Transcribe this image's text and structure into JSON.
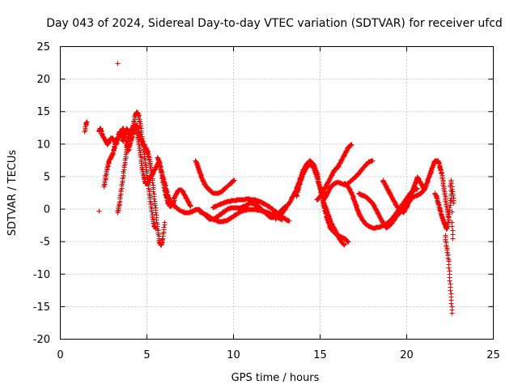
{
  "chart_data": {
    "type": "scatter",
    "title": "Day 043 of 2024, Sidereal Day-to-day VTEC variation (SDTVAR) for receiver ufcd",
    "xlabel": "GPS time / hours",
    "ylabel": "SDTVAR / TECUs",
    "xlim": [
      0,
      25
    ],
    "ylim": [
      -20,
      25
    ],
    "x_ticks": [
      0,
      5,
      10,
      15,
      20,
      25
    ],
    "y_ticks": [
      -20,
      -15,
      -10,
      -5,
      0,
      5,
      10,
      15,
      20,
      25
    ],
    "grid": true,
    "marker": "+",
    "color": "#ff0000",
    "series": [
      {
        "name": "s1",
        "x": [
          1.4,
          1.45,
          1.5
        ],
        "y": [
          12,
          13,
          13.5
        ]
      },
      {
        "name": "s2",
        "x": [
          2.2,
          2.3,
          2.4,
          2.5,
          2.6,
          2.7,
          2.8,
          2.9,
          3.0,
          3.1,
          3.2,
          3.3,
          3.4,
          3.5,
          3.6,
          3.7,
          3.8,
          3.9,
          4.0,
          4.1,
          4.2,
          4.3,
          4.4,
          4.5,
          4.6,
          4.7,
          4.8,
          4.9,
          5.0,
          5.1,
          5.2,
          5.3,
          5.4,
          5.5
        ],
        "y": [
          12,
          12.5,
          11.5,
          11,
          10.5,
          10,
          10.5,
          11,
          11,
          10.5,
          10,
          11,
          12,
          11.5,
          10.5,
          11.5,
          12.5,
          12,
          11,
          12,
          13,
          14.5,
          15,
          14.5,
          13,
          11,
          9,
          7,
          5,
          3,
          1,
          -1,
          -2.5,
          -3
        ]
      },
      {
        "name": "s3",
        "x": [
          2.5,
          2.6,
          2.7,
          2.8,
          2.9,
          3.0,
          3.1,
          3.2,
          3.3,
          3.4,
          3.5,
          3.6,
          3.7,
          3.8,
          3.9,
          4.0,
          4.1,
          4.2,
          4.3,
          4.4,
          4.5,
          4.6,
          4.7,
          4.8,
          4.9,
          5.0,
          5.1,
          5.2,
          5.3,
          5.4,
          5.5,
          5.6,
          5.7,
          5.8,
          5.9,
          6.0
        ],
        "y": [
          3.5,
          5,
          6.5,
          7.5,
          8,
          8.5,
          9.5,
          10.5,
          11,
          11.5,
          12,
          12.5,
          11.5,
          10,
          9,
          10,
          11,
          12,
          12.5,
          13,
          12,
          11,
          10.5,
          10,
          9.5,
          9,
          8,
          6.5,
          4.5,
          2,
          -0.5,
          -3,
          -5,
          -5.5,
          -4.5,
          -2
        ]
      },
      {
        "name": "s4",
        "x": [
          3.3,
          3.4,
          3.5,
          3.6,
          3.7,
          3.8,
          3.9,
          4.0,
          4.1,
          4.2,
          4.3,
          4.4,
          4.5,
          4.6,
          4.7,
          4.8,
          4.9,
          5.0,
          5.1,
          5.2,
          5.3,
          5.4,
          5.5,
          5.6,
          5.7,
          5.8,
          5.9,
          6.0,
          6.1,
          6.2,
          6.3,
          6.4,
          6.5,
          6.6,
          6.7,
          6.8,
          6.9,
          7.0,
          7.1,
          7.2,
          7.3,
          7.4,
          7.5
        ],
        "y": [
          -0.5,
          1,
          3,
          5,
          7,
          9,
          10.5,
          11.5,
          12,
          12.5,
          13,
          12,
          10.5,
          8.5,
          6.5,
          5,
          4,
          4,
          4.5,
          5,
          5.5,
          6,
          6.5,
          7,
          7.5,
          6,
          4.5,
          3,
          2,
          1,
          0.5,
          0.5,
          1,
          2,
          2.5,
          3,
          3,
          3,
          2.5,
          2,
          1.5,
          1,
          0.5
        ]
      },
      {
        "name": "s5",
        "x": [
          3.3
        ],
        "y": [
          22.5
        ]
      },
      {
        "name": "s6",
        "x": [
          2.2
        ],
        "y": [
          -0.2
        ]
      },
      {
        "name": "s7",
        "x": [
          5.6,
          5.8,
          6.0,
          6.2,
          6.4,
          6.6,
          6.8,
          7.0,
          7.2,
          7.4,
          7.6,
          7.8,
          8.0,
          8.2,
          8.4,
          8.6,
          8.8,
          9.0,
          9.2,
          9.4,
          9.6,
          9.8,
          10.0,
          10.2,
          10.4,
          10.6,
          10.8,
          11.0,
          11.2,
          11.4,
          11.6,
          11.8,
          12.0,
          12.2,
          12.4,
          12.6,
          12.8,
          13.0
        ],
        "y": [
          8,
          6,
          4,
          2,
          1,
          0.5,
          0,
          -0.3,
          -0.5,
          -0.5,
          -0.3,
          0,
          0,
          -0.5,
          -1,
          -1.5,
          -1.5,
          -1.2,
          -0.8,
          -0.4,
          0,
          0.2,
          0.3,
          0.2,
          0.3,
          0.5,
          0.8,
          1,
          0.8,
          0.5,
          0,
          -0.5,
          -1,
          -1.3,
          -1,
          -0.5,
          0,
          0.5
        ]
      },
      {
        "name": "s8",
        "x": [
          7.8,
          8.0,
          8.2,
          8.4,
          8.6,
          8.8,
          9.0,
          9.2,
          9.4,
          9.6,
          9.8,
          10.0
        ],
        "y": [
          7.5,
          6,
          4.5,
          3.5,
          3,
          2.5,
          2.5,
          2.6,
          3,
          3.5,
          4,
          4.5
        ]
      },
      {
        "name": "s9",
        "x": [
          8.0,
          8.4,
          8.8,
          9.2,
          9.6,
          10.0,
          10.4,
          10.8,
          11.2,
          11.6,
          12.0,
          12.4,
          12.8
        ],
        "y": [
          -0.3,
          -0.8,
          -1.5,
          -1.9,
          -1.7,
          -1,
          -0.3,
          0,
          0,
          -0.2,
          -0.5,
          -1,
          -1.6
        ]
      },
      {
        "name": "s10",
        "x": [
          8.8,
          9.2,
          9.6,
          10.0,
          10.4,
          10.8,
          11.2,
          11.6,
          12.0,
          12.4,
          12.8,
          13.2
        ],
        "y": [
          0.3,
          0.8,
          1.2,
          1.4,
          1.5,
          1.6,
          1.5,
          1.1,
          0.5,
          -0.3,
          -1.2,
          -1.8
        ]
      },
      {
        "name": "s11",
        "x": [
          12.4,
          12.8,
          13.2,
          13.6,
          13.8,
          14.0,
          14.2,
          14.4,
          14.6,
          14.8,
          15.0,
          15.2,
          15.4,
          15.6,
          15.8,
          16.0,
          16.2,
          16.4,
          16.6
        ],
        "y": [
          -1.5,
          -0.5,
          1,
          3,
          4.5,
          6,
          7,
          7.5,
          7,
          5.5,
          3,
          0.5,
          -1.5,
          -3,
          -3.5,
          -4,
          -4.2,
          -4.5,
          -5
        ]
      },
      {
        "name": "s12",
        "x": [
          13.6,
          13.8,
          14.0,
          14.2,
          14.4,
          14.6,
          14.8,
          15.0,
          15.2,
          15.4,
          15.6,
          15.8,
          16.0,
          16.2,
          16.4
        ],
        "y": [
          2,
          4,
          5.5,
          6.5,
          7,
          6.5,
          5,
          3,
          1,
          -0.5,
          -2,
          -3,
          -4,
          -5,
          -5.5
        ]
      },
      {
        "name": "s13",
        "x": [
          14.8,
          15.0,
          15.2,
          15.4,
          15.6,
          15.8,
          16.0,
          16.2,
          16.4,
          16.6,
          16.8
        ],
        "y": [
          1.5,
          2,
          3,
          4,
          5,
          6,
          6.5,
          7.5,
          8.5,
          9.5,
          10
        ]
      },
      {
        "name": "s14",
        "x": [
          15.2,
          15.4,
          15.6,
          15.8,
          16.0,
          16.2,
          16.4,
          16.6,
          16.8,
          17.0,
          17.2,
          17.4,
          17.6,
          17.8,
          18.0
        ],
        "y": [
          1.5,
          2.5,
          3.5,
          4,
          4.2,
          4,
          3.8,
          4,
          4.5,
          5,
          5.5,
          6.2,
          6.8,
          7.3,
          7.5
        ]
      },
      {
        "name": "s15",
        "x": [
          16.4,
          16.6,
          16.8,
          17.0,
          17.2,
          17.4,
          17.6,
          17.8,
          18.0,
          18.2,
          18.4,
          18.6,
          18.8,
          19.0,
          19.2,
          19.4,
          19.6,
          19.8,
          20.0,
          20.2,
          20.4,
          20.6
        ],
        "y": [
          4,
          3.5,
          2.5,
          1,
          -0.5,
          -1.5,
          -2.2,
          -2.6,
          -2.8,
          -2.8,
          -2.7,
          -2.5,
          -2.2,
          -1.8,
          -1.2,
          -0.5,
          0.3,
          1,
          1.8,
          2.5,
          3,
          3.2
        ]
      },
      {
        "name": "s16",
        "x": [
          17.2,
          17.4,
          17.6,
          17.8,
          18.0,
          18.2,
          18.4,
          18.6,
          18.8,
          19.0,
          19.2,
          19.4,
          19.6,
          19.8,
          20.0,
          20.2,
          20.4,
          20.6,
          20.8,
          21.0
        ],
        "y": [
          2.5,
          2.2,
          2,
          1.5,
          1,
          0,
          -1,
          -2,
          -2.8,
          -2.5,
          -1.8,
          -1,
          -0.5,
          0,
          0.8,
          1.5,
          2,
          2.2,
          2.5,
          3
        ]
      },
      {
        "name": "s17",
        "x": [
          18.6,
          18.8,
          19.0,
          19.2,
          19.4,
          19.6,
          19.8,
          20.0,
          20.2,
          20.4,
          20.6,
          20.8,
          21.0,
          21.2,
          21.4,
          21.6,
          21.8,
          22.0,
          22.2,
          22.4
        ],
        "y": [
          4.5,
          3.5,
          2.5,
          1.5,
          0.5,
          0,
          -0.5,
          0.5,
          2,
          3.5,
          5,
          4,
          3,
          4.5,
          6,
          7.5,
          7.5,
          5.5,
          2,
          -1.5
        ]
      },
      {
        "name": "s18",
        "x": [
          21.6,
          21.7,
          21.8,
          21.9,
          22.0,
          22.1,
          22.2,
          22.3,
          22.4,
          22.5,
          22.6,
          22.7
        ],
        "y": [
          2.5,
          2,
          1,
          0,
          -1,
          -1.8,
          -2.5,
          -3,
          -1.5,
          1,
          3.5,
          1
        ]
      },
      {
        "name": "s19",
        "x": [
          22.2,
          22.3,
          22.4,
          22.45,
          22.5,
          22.55,
          22.6
        ],
        "y": [
          -4,
          -6,
          -8,
          -10,
          -12,
          -14,
          -16
        ]
      },
      {
        "name": "s20",
        "x": [
          22.5,
          22.55,
          22.6,
          22.65
        ],
        "y": [
          3.5,
          4.5,
          -2,
          -4.5
        ]
      }
    ]
  }
}
